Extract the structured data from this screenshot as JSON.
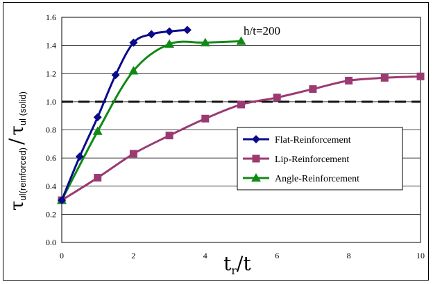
{
  "chart_data": {
    "type": "line",
    "xlabel": {
      "main": "t",
      "sub": "r",
      "tail": "/t"
    },
    "ylabel": {
      "main1": "τ",
      "sub1": "ul(reinforced)",
      "slash": "/",
      "main2": "τ",
      "sub2": "ul (solid)"
    },
    "xlim": [
      0,
      10
    ],
    "ylim": [
      0.0,
      1.6
    ],
    "x_ticks": [
      "0",
      "2",
      "4",
      "6",
      "8",
      "10"
    ],
    "y_ticks": [
      "0.0",
      "0.2",
      "0.4",
      "0.6",
      "0.8",
      "1.0",
      "1.2",
      "1.4",
      "1.6"
    ],
    "grid": "horizontal",
    "reference_line": {
      "y": 1.0,
      "style": "dashed"
    },
    "annotation": "h/t=200",
    "legend_position": "lower-right",
    "series": [
      {
        "name": "Flat-Reinforcement",
        "color": "#0a0a8c",
        "marker": "diamond",
        "x": [
          0,
          0.5,
          1.0,
          1.5,
          2.0,
          2.5,
          3.0,
          3.5
        ],
        "y": [
          0.3,
          0.61,
          0.89,
          1.19,
          1.42,
          1.48,
          1.5,
          1.51
        ]
      },
      {
        "name": "Lip-Reinforcement",
        "color": "#9b3a72",
        "marker": "square",
        "x": [
          0,
          1,
          2,
          3,
          4,
          5,
          6,
          7,
          8,
          9,
          10
        ],
        "y": [
          0.3,
          0.46,
          0.63,
          0.76,
          0.88,
          0.98,
          1.03,
          1.09,
          1.15,
          1.17,
          1.18
        ]
      },
      {
        "name": "Angle-Reinforcement",
        "color": "#0f8a14",
        "marker": "triangle",
        "x": [
          0,
          1,
          2,
          3,
          4,
          5
        ],
        "y": [
          0.3,
          0.79,
          1.22,
          1.41,
          1.42,
          1.43
        ]
      }
    ]
  }
}
